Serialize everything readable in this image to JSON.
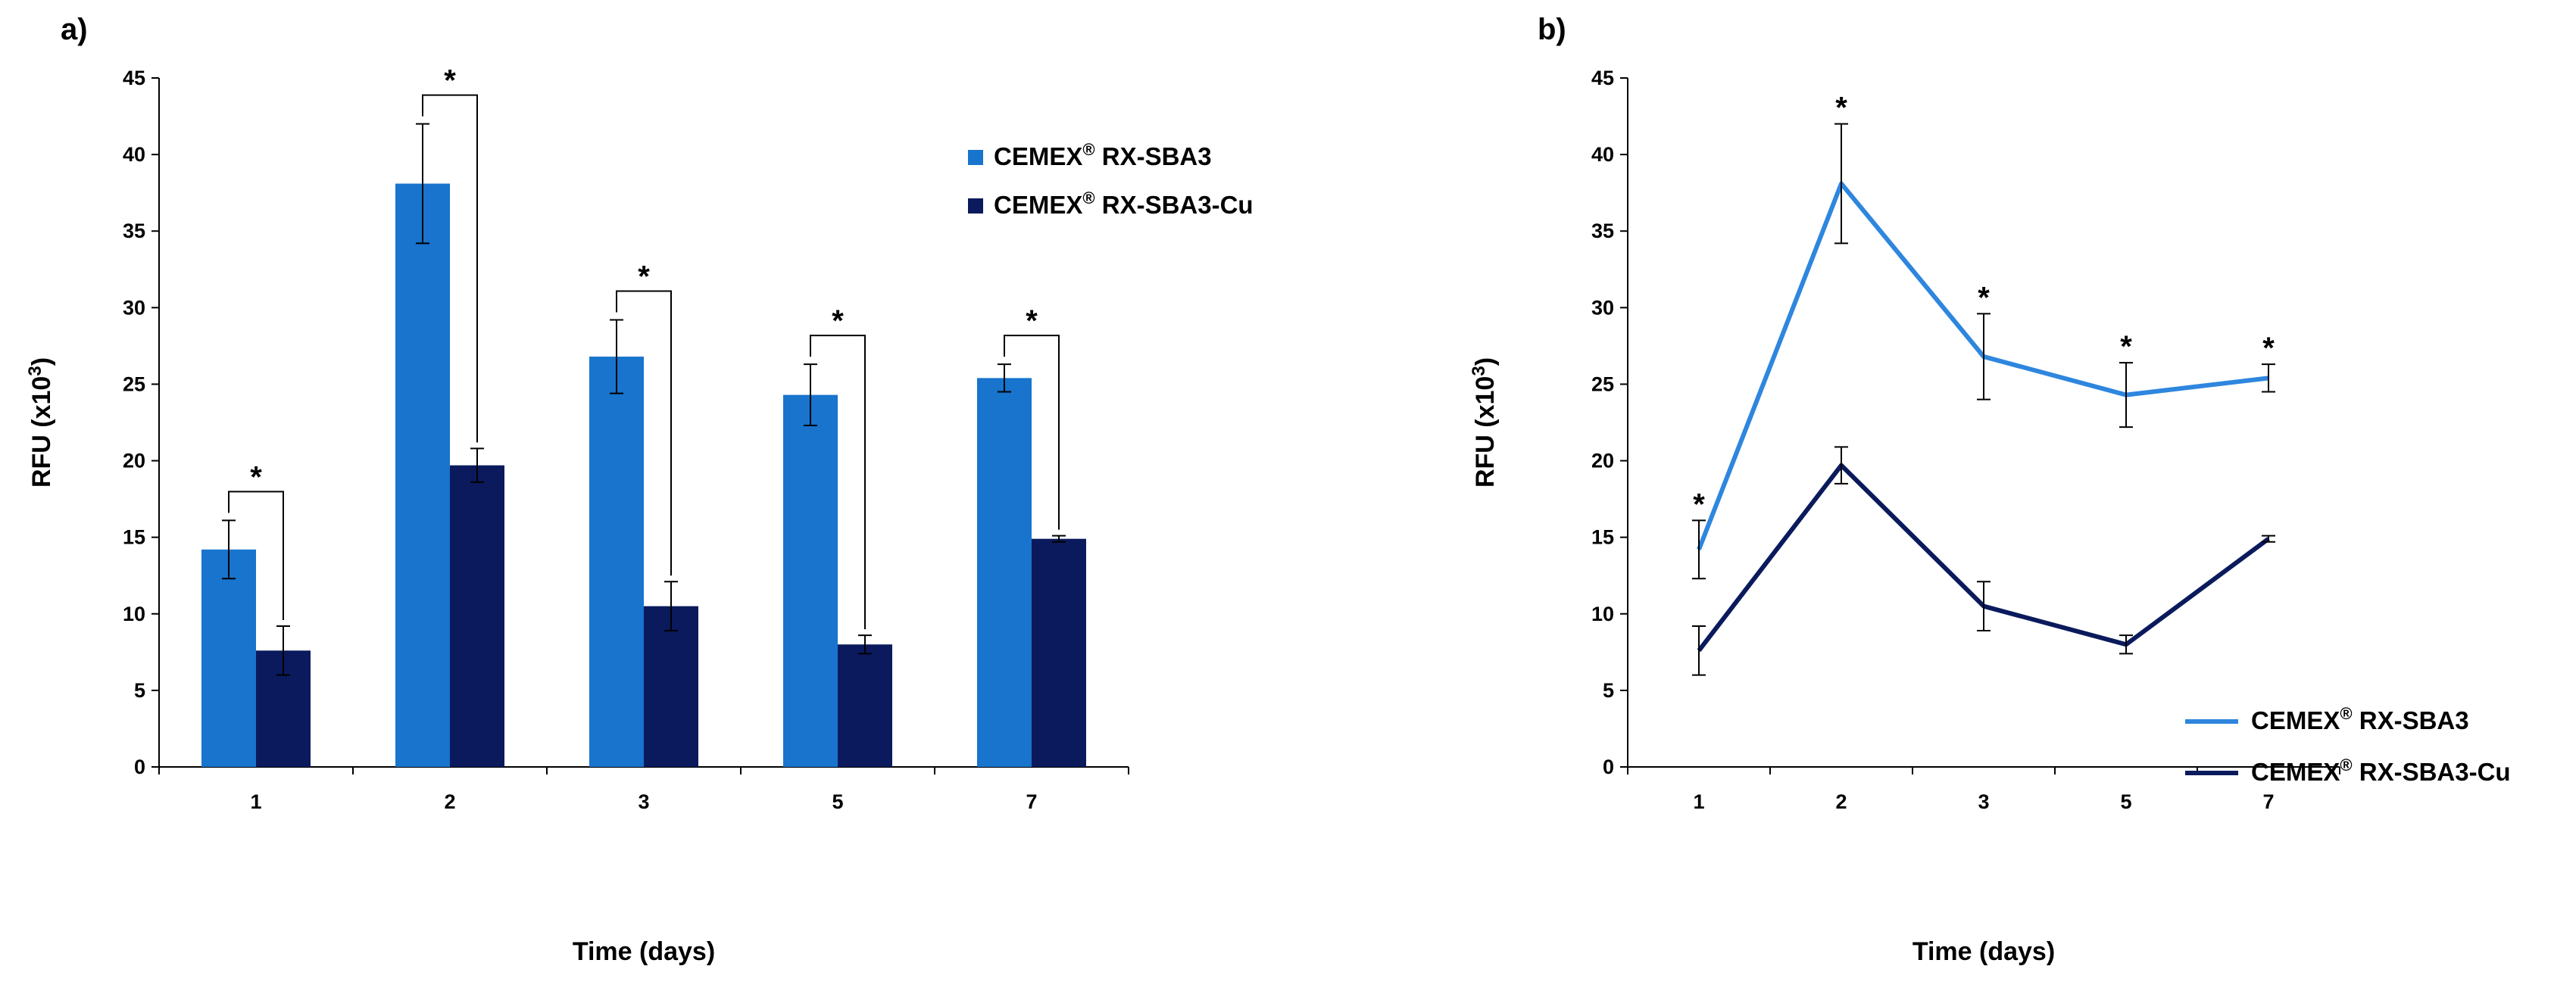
{
  "chart_data": [
    {
      "type": "bar",
      "panel_label": "a)",
      "categories": [
        "1",
        "2",
        "3",
        "5",
        "7"
      ],
      "xlabel": "Time (days)",
      "ylabel_main": "RFU (x10",
      "ylabel_exp": "3",
      "ylabel_close": ")",
      "ylim": [
        0,
        45
      ],
      "yticks": [
        "0",
        "5",
        "10",
        "15",
        "20",
        "25",
        "30",
        "35",
        "40",
        "45"
      ],
      "series": [
        {
          "name_main": "CEMEX",
          "name_mark": "®",
          "name_rest": " RX-SBA3",
          "color": "#1874CD",
          "values": [
            14.2,
            38.1,
            26.8,
            24.3,
            25.4
          ],
          "errors": [
            1.9,
            3.9,
            2.4,
            2.0,
            0.9
          ]
        },
        {
          "name_main": "CEMEX",
          "name_mark": "®",
          "name_rest": " RX-SBA3-Cu",
          "color": "#0A1A5C",
          "values": [
            7.6,
            19.7,
            10.5,
            8.0,
            14.9
          ],
          "errors": [
            1.6,
            1.1,
            1.6,
            0.6,
            0.2
          ]
        }
      ],
      "significance_mark": "*",
      "legend_position": "top-right"
    },
    {
      "type": "line",
      "panel_label": "b)",
      "categories": [
        "1",
        "2",
        "3",
        "5",
        "7"
      ],
      "xlabel": "Time (days)",
      "ylabel_main": "RFU (x10",
      "ylabel_exp": "3",
      "ylabel_close": ")",
      "ylim": [
        0,
        45
      ],
      "yticks": [
        "0",
        "5",
        "10",
        "15",
        "20",
        "25",
        "30",
        "35",
        "40",
        "45"
      ],
      "series": [
        {
          "name_main": "CEMEX",
          "name_mark": "®",
          "name_rest": " RX-SBA3",
          "color": "#2E86DE",
          "values": [
            14.2,
            38.1,
            26.8,
            24.3,
            25.4
          ],
          "errors": [
            1.9,
            3.9,
            2.8,
            2.1,
            0.9
          ]
        },
        {
          "name_main": "CEMEX",
          "name_mark": "®",
          "name_rest": " RX-SBA3-Cu",
          "color": "#0A1A5C",
          "values": [
            7.6,
            19.7,
            10.5,
            8.0,
            14.9
          ],
          "errors": [
            1.6,
            1.2,
            1.6,
            0.6,
            0.2
          ]
        }
      ],
      "significance_mark": "*",
      "legend_position": "bottom-right"
    }
  ]
}
